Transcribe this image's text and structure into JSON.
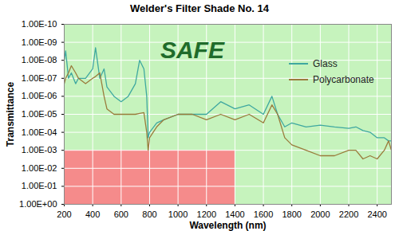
{
  "chart_data": {
    "type": "line",
    "title": "Welder's Filter Shade No. 14",
    "x_label": "Wavelength (nm)",
    "y_label": "Transmittance",
    "log": "y",
    "grid": true,
    "legend": "top-right",
    "xlim": [
      200,
      2500
    ],
    "xticks": [
      200,
      400,
      600,
      800,
      1000,
      1200,
      1400,
      1600,
      1800,
      2000,
      2200,
      2400
    ],
    "ylim": [
      1,
      1e-10
    ],
    "yticks": [
      {
        "value": 1e-10,
        "label": "1.00E-10"
      },
      {
        "value": 1e-09,
        "label": "1.00E-09"
      },
      {
        "value": 1e-08,
        "label": "1.00E-08"
      },
      {
        "value": 1e-07,
        "label": "1.00E-07"
      },
      {
        "value": 1e-06,
        "label": "1.00E-06"
      },
      {
        "value": 1e-05,
        "label": "1.00E-05"
      },
      {
        "value": 0.0001,
        "label": "1.00E-04"
      },
      {
        "value": 0.001,
        "label": "1.00E-03"
      },
      {
        "value": 0.01,
        "label": "1.00E-02"
      },
      {
        "value": 0.1,
        "label": "1.00E-01"
      },
      {
        "value": 1,
        "label": "1.00E+00"
      }
    ],
    "unsafe_region": {
      "x": [
        200,
        1400
      ],
      "y": [
        0.001,
        1
      ]
    },
    "annotations": [
      {
        "text": "SAFE",
        "x": 1100,
        "y": 3e-09
      }
    ],
    "x": [
      200,
      210,
      230,
      250,
      280,
      300,
      350,
      400,
      420,
      450,
      480,
      500,
      550,
      600,
      650,
      700,
      730,
      760,
      780,
      790,
      800,
      850,
      900,
      1000,
      1100,
      1200,
      1300,
      1400,
      1500,
      1600,
      1660,
      1700,
      1750,
      1800,
      1900,
      2000,
      2100,
      2200,
      2250,
      2300,
      2350,
      2400,
      2450,
      2480,
      2500
    ],
    "series": [
      {
        "name": "Glass",
        "color": "#3fa8a0",
        "values": [
          1e-08,
          3e-09,
          1e-07,
          5e-08,
          2e-07,
          1e-07,
          1e-07,
          3e-08,
          2e-09,
          1e-07,
          3e-08,
          3e-07,
          1e-06,
          2e-06,
          1e-06,
          2e-07,
          1e-08,
          3e-08,
          1e-06,
          0.0002,
          0.0001,
          3e-05,
          2e-05,
          1e-05,
          1e-05,
          1e-05,
          2e-06,
          5e-06,
          3e-06,
          1e-05,
          1e-06,
          1e-05,
          5e-05,
          3e-05,
          5e-05,
          4e-05,
          5e-05,
          6e-05,
          5e-05,
          8e-05,
          0.0001,
          0.0002,
          0.0002,
          0.0003,
          0.0003
        ]
      },
      {
        "name": "Polycarbonate",
        "color": "#9a7b3c",
        "values": [
          2e-07,
          1e-07,
          5e-08,
          2e-08,
          5e-08,
          1e-07,
          2e-07,
          1e-07,
          8e-08,
          5e-08,
          1e-06,
          5e-06,
          1e-05,
          1e-05,
          1e-05,
          1e-05,
          9e-06,
          8e-06,
          0.0001,
          0.001,
          0.0002,
          5e-05,
          2e-05,
          1e-05,
          1e-05,
          2e-05,
          1e-05,
          2e-05,
          1e-05,
          3e-05,
          3e-06,
          1e-05,
          0.0002,
          0.0005,
          0.001,
          0.002,
          0.002,
          0.001,
          0.001,
          0.003,
          0.002,
          0.003,
          0.001,
          0.0003,
          0.001
        ]
      }
    ]
  }
}
